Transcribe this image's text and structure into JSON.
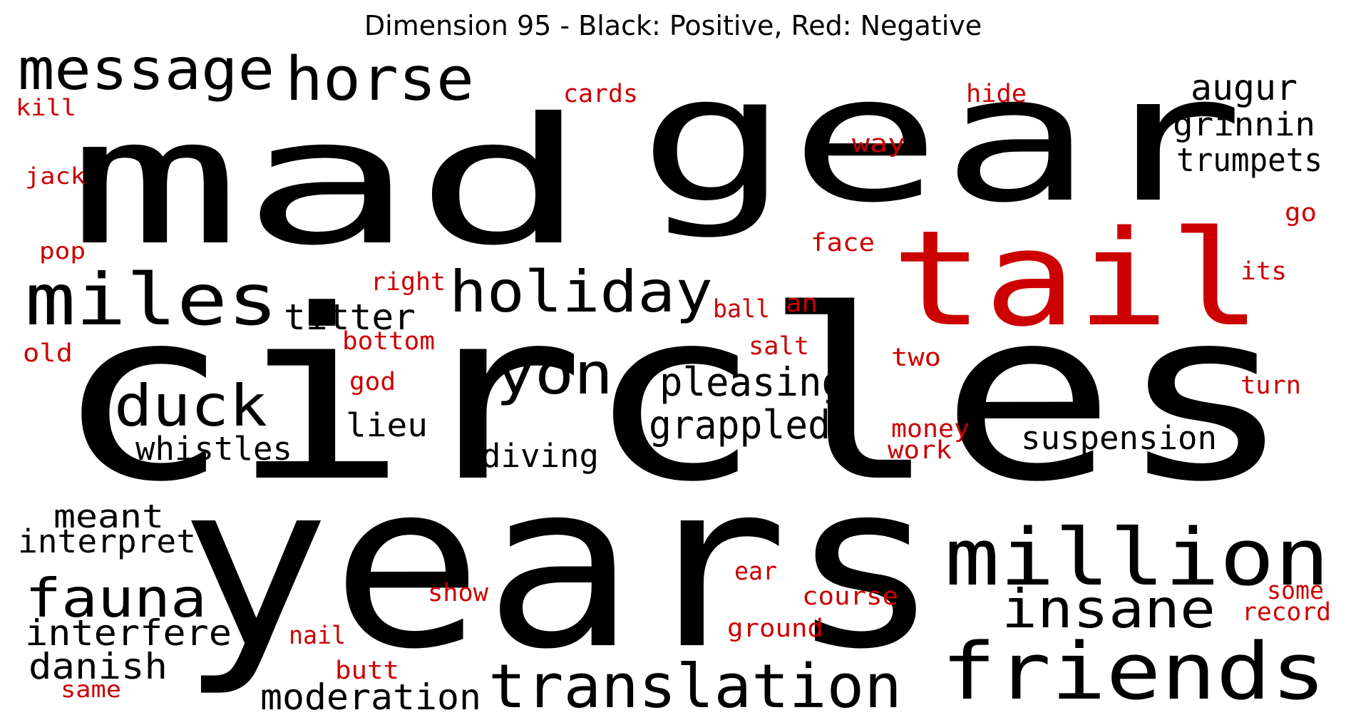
{
  "title": "Dimension 95 - Black: Positive, Red: Negative",
  "colors": {
    "positive": "#000000",
    "negative": "#cc0000"
  },
  "words": [
    {
      "text": "circles",
      "polarity": "positive"
    },
    {
      "text": "years",
      "polarity": "positive"
    },
    {
      "text": "mad",
      "polarity": "positive"
    },
    {
      "text": "gear",
      "polarity": "positive"
    },
    {
      "text": "tail",
      "polarity": "negative"
    },
    {
      "text": "million",
      "polarity": "positive"
    },
    {
      "text": "friends",
      "polarity": "positive"
    },
    {
      "text": "miles",
      "polarity": "positive"
    },
    {
      "text": "translation",
      "polarity": "positive"
    },
    {
      "text": "horse",
      "polarity": "positive"
    },
    {
      "text": "message",
      "polarity": "positive"
    },
    {
      "text": "holiday",
      "polarity": "positive"
    },
    {
      "text": "duck",
      "polarity": "positive"
    },
    {
      "text": "yon",
      "polarity": "positive"
    },
    {
      "text": "insane",
      "polarity": "positive"
    },
    {
      "text": "fauna",
      "polarity": "positive"
    },
    {
      "text": "pleasing",
      "polarity": "positive"
    },
    {
      "text": "grappled",
      "polarity": "positive"
    },
    {
      "text": "moderation",
      "polarity": "positive"
    },
    {
      "text": "titter",
      "polarity": "positive"
    },
    {
      "text": "augur",
      "polarity": "positive"
    },
    {
      "text": "interfere",
      "polarity": "positive"
    },
    {
      "text": "danish",
      "polarity": "positive"
    },
    {
      "text": "suspension",
      "polarity": "positive"
    },
    {
      "text": "meant",
      "polarity": "positive"
    },
    {
      "text": "lieu",
      "polarity": "positive"
    },
    {
      "text": "interpret",
      "polarity": "positive"
    },
    {
      "text": "grinnin",
      "polarity": "positive"
    },
    {
      "text": "trumpets",
      "polarity": "positive"
    },
    {
      "text": "whistles",
      "polarity": "positive"
    },
    {
      "text": "diving",
      "polarity": "positive"
    },
    {
      "text": "cards",
      "polarity": "negative"
    },
    {
      "text": "hide",
      "polarity": "negative"
    },
    {
      "text": "kill",
      "polarity": "negative"
    },
    {
      "text": "jack",
      "polarity": "negative"
    },
    {
      "text": "way",
      "polarity": "negative"
    },
    {
      "text": "go",
      "polarity": "negative"
    },
    {
      "text": "face",
      "polarity": "negative"
    },
    {
      "text": "pop",
      "polarity": "negative"
    },
    {
      "text": "right",
      "polarity": "negative"
    },
    {
      "text": "its",
      "polarity": "negative"
    },
    {
      "text": "ball",
      "polarity": "negative"
    },
    {
      "text": "an",
      "polarity": "negative"
    },
    {
      "text": "old",
      "polarity": "negative"
    },
    {
      "text": "bottom",
      "polarity": "negative"
    },
    {
      "text": "salt",
      "polarity": "negative"
    },
    {
      "text": "two",
      "polarity": "negative"
    },
    {
      "text": "god",
      "polarity": "negative"
    },
    {
      "text": "turn",
      "polarity": "negative"
    },
    {
      "text": "money",
      "polarity": "negative"
    },
    {
      "text": "work",
      "polarity": "negative"
    },
    {
      "text": "ear",
      "polarity": "negative"
    },
    {
      "text": "show",
      "polarity": "negative"
    },
    {
      "text": "some",
      "polarity": "negative"
    },
    {
      "text": "course",
      "polarity": "negative"
    },
    {
      "text": "record",
      "polarity": "negative"
    },
    {
      "text": "ground",
      "polarity": "negative"
    },
    {
      "text": "nail",
      "polarity": "negative"
    },
    {
      "text": "butt",
      "polarity": "negative"
    },
    {
      "text": "same",
      "polarity": "negative"
    }
  ]
}
